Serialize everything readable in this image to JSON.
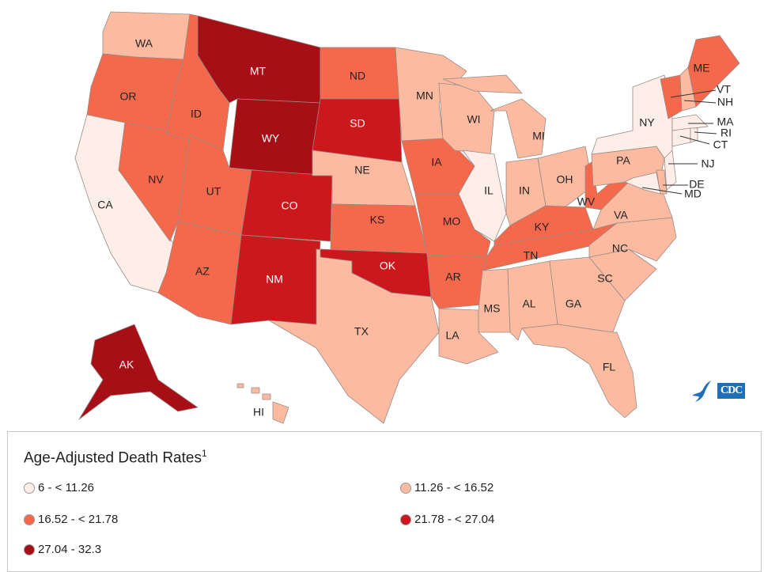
{
  "legend": {
    "title": "Age-Adjusted Death Rates",
    "footnote": "1",
    "items": [
      {
        "label": "6 - < 11.26",
        "color": "#fdeee8"
      },
      {
        "label": "11.26 - < 16.52",
        "color": "#fcbba1"
      },
      {
        "label": "16.52 - < 21.78",
        "color": "#f4694b"
      },
      {
        "label": "21.78 - < 27.04",
        "color": "#cb181d"
      },
      {
        "label": "27.04 - 32.3",
        "color": "#a50f15"
      }
    ]
  },
  "states": {
    "WA": 1,
    "OR": 2,
    "CA": 0,
    "NV": 2,
    "ID": 2,
    "MT": 4,
    "WY": 4,
    "UT": 2,
    "CO": 3,
    "AZ": 2,
    "NM": 3,
    "ND": 2,
    "SD": 3,
    "NE": 1,
    "KS": 2,
    "OK": 3,
    "TX": 1,
    "MN": 1,
    "IA": 2,
    "MO": 2,
    "AR": 2,
    "LA": 1,
    "WI": 1,
    "IL": 0,
    "MI": 1,
    "IN": 1,
    "OH": 1,
    "KY": 2,
    "TN": 2,
    "MS": 1,
    "AL": 1,
    "GA": 1,
    "FL": 1,
    "SC": 1,
    "NC": 1,
    "VA": 1,
    "WV": 2,
    "PA": 1,
    "NY": 0,
    "VT": 2,
    "NH": 1,
    "ME": 2,
    "MA": 0,
    "CT": 0,
    "RI": 0,
    "NJ": 0,
    "DE": 1,
    "MD": 0,
    "AK": 4,
    "HI": 1
  },
  "labels": {
    "WA": "WA",
    "OR": "OR",
    "CA": "CA",
    "NV": "NV",
    "ID": "ID",
    "MT": "MT",
    "WY": "WY",
    "UT": "UT",
    "CO": "CO",
    "AZ": "AZ",
    "NM": "NM",
    "ND": "ND",
    "SD": "SD",
    "NE": "NE",
    "KS": "KS",
    "OK": "OK",
    "TX": "TX",
    "MN": "MN",
    "IA": "IA",
    "MO": "MO",
    "AR": "AR",
    "LA": "LA",
    "WI": "WI",
    "IL": "IL",
    "MI": "MI",
    "IN": "IN",
    "OH": "OH",
    "KY": "KY",
    "TN": "TN",
    "MS": "MS",
    "AL": "AL",
    "GA": "GA",
    "FL": "FL",
    "SC": "SC",
    "NC": "NC",
    "VA": "VA",
    "WV": "WV",
    "PA": "PA",
    "NY": "NY",
    "VT": "VT",
    "NH": "NH",
    "ME": "ME",
    "MA": "MA",
    "CT": "CT",
    "RI": "RI",
    "NJ": "NJ",
    "DE": "DE",
    "MD": "MD",
    "AK": "AK",
    "HI": "HI"
  },
  "logo": {
    "text": "CDC"
  }
}
